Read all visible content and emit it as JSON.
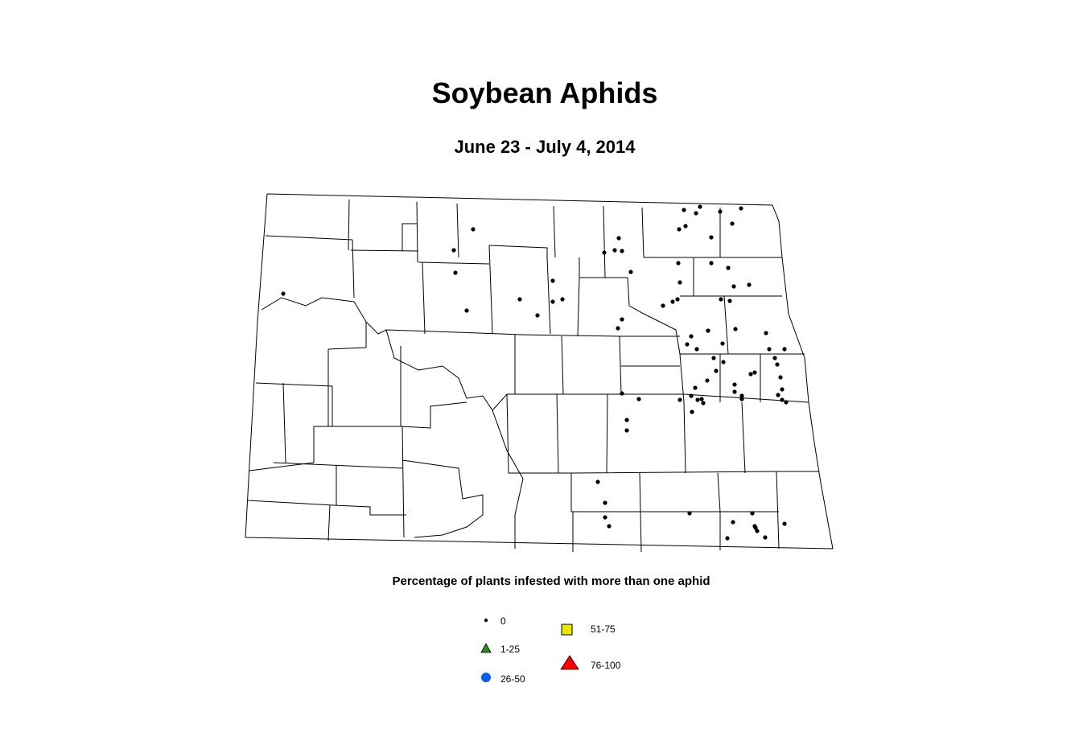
{
  "title": "Soybean Aphids",
  "subtitle": "June 23 - July 4, 2014",
  "legend": {
    "title": "Percentage of plants infested with more than one aphid",
    "items": [
      {
        "label": "0",
        "symbol": "small-dot",
        "color": "#000000"
      },
      {
        "label": "1-25",
        "symbol": "triangle",
        "color": "#2e8b1a"
      },
      {
        "label": "26-50",
        "symbol": "circle",
        "color": "#0a5ee8"
      },
      {
        "label": "51-75",
        "symbol": "square",
        "color": "#e8e800"
      },
      {
        "label": "76-100",
        "symbol": "triangle-large",
        "color": "#ff0000"
      }
    ]
  },
  "map": {
    "region": "North Dakota counties",
    "sample_site_category": "0"
  }
}
